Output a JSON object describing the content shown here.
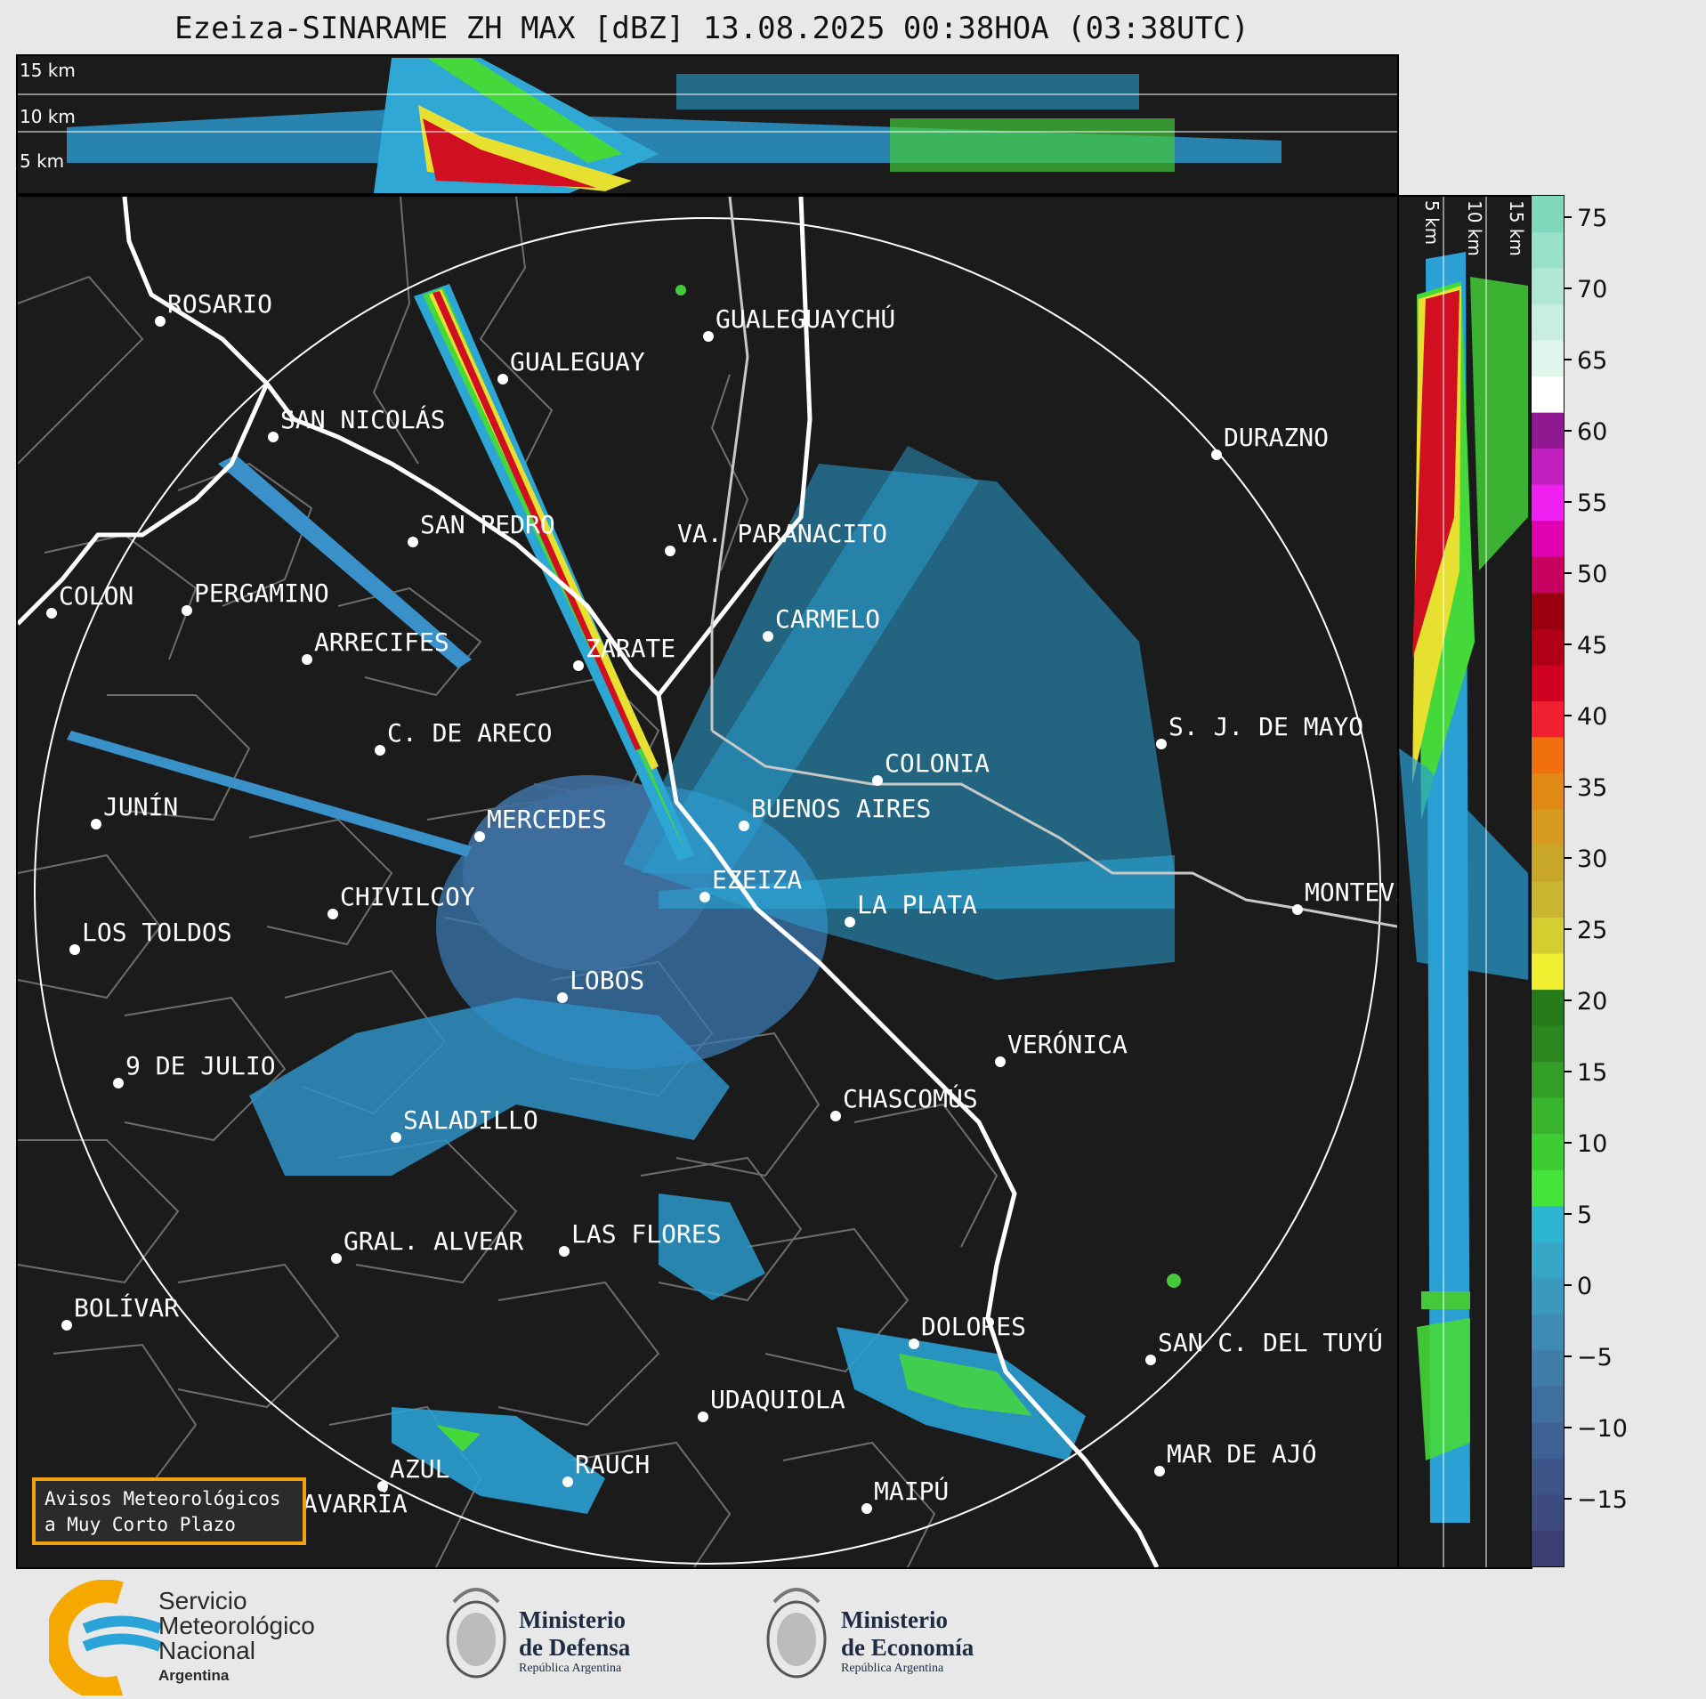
{
  "title": "Ezeiza-SINARAME ZH MAX [dBZ] 13.08.2025 00:38HOA (03:38UTC)",
  "top_panel": {
    "height_labels": [
      "15 km",
      "10 km",
      "5 km"
    ]
  },
  "side_panel": {
    "height_labels": [
      "5 km",
      "10 km",
      "15 km"
    ]
  },
  "colorbar": {
    "unit": "dBZ",
    "ticks": [
      "75",
      "70",
      "65",
      "60",
      "55",
      "50",
      "45",
      "40",
      "35",
      "30",
      "25",
      "20",
      "15",
      "10",
      "5",
      "0",
      "−5",
      "−10",
      "−15"
    ],
    "colors": [
      "#3b3f73",
      "#3d4a7e",
      "#3e558a",
      "#3f6294",
      "#3f6f9e",
      "#3f7ca8",
      "#3f8ab2",
      "#3c98bc",
      "#36a6c6",
      "#2cb4d0",
      "#45e43a",
      "#3ecc33",
      "#38b52d",
      "#329e27",
      "#2c8721",
      "#257a1c",
      "#f0f030",
      "#d4cf30",
      "#c9b530",
      "#c8a628",
      "#d69a20",
      "#e08a15",
      "#f07010",
      "#f02030",
      "#d00020",
      "#b00015",
      "#980010",
      "#c80060",
      "#e000b0",
      "#f020f0",
      "#c020c0",
      "#901890",
      "#ffffff",
      "#e0f5ec",
      "#c8eee0",
      "#b0e8d4",
      "#98e0c8",
      "#80d8bc"
    ]
  },
  "cities": [
    {
      "name": "ROSARIO"
    },
    {
      "name": "GUALEGUAYCHÚ"
    },
    {
      "name": "GUALEGUAY"
    },
    {
      "name": "SAN NICOLÁS"
    },
    {
      "name": "DURAZNO"
    },
    {
      "name": "SAN PEDRO"
    },
    {
      "name": "VA. PARANACITO"
    },
    {
      "name": "COLON"
    },
    {
      "name": "PERGAMINO"
    },
    {
      "name": "CARMELO"
    },
    {
      "name": "ARRECIFES"
    },
    {
      "name": "ZÁRATE"
    },
    {
      "name": "C. DE ARECO"
    },
    {
      "name": "S. J. DE MAYO"
    },
    {
      "name": "COLONIA"
    },
    {
      "name": "JUNÍN"
    },
    {
      "name": "MERCEDES"
    },
    {
      "name": "BUENOS AIRES"
    },
    {
      "name": "EZEIZA"
    },
    {
      "name": "CHIVILCOY"
    },
    {
      "name": "LA PLATA"
    },
    {
      "name": "MONTEVIDEO"
    },
    {
      "name": "LOS TOLDOS"
    },
    {
      "name": "LOBOS"
    },
    {
      "name": "VERÓNICA"
    },
    {
      "name": "9 DE JULIO"
    },
    {
      "name": "CHASCOMÚS"
    },
    {
      "name": "SALADILLO"
    },
    {
      "name": "GRAL. ALVEAR"
    },
    {
      "name": "LAS FLORES"
    },
    {
      "name": "BOLÍVAR"
    },
    {
      "name": "DOLORES"
    },
    {
      "name": "SAN C. DEL TUYÚ"
    },
    {
      "name": "UDAQUIOLA"
    },
    {
      "name": "AZUL"
    },
    {
      "name": "RAUCH"
    },
    {
      "name": "MAR DE AJÓ"
    },
    {
      "name": "OLAVARRÍA"
    },
    {
      "name": "MAIPÚ"
    }
  ],
  "avisos_box": {
    "line1": "Avisos Meteorológicos",
    "line2": "a Muy Corto Plazo"
  },
  "logos": {
    "smn": {
      "line1": "Servicio",
      "line2": "Meteorológico",
      "line3": "Nacional",
      "line4": "Argentina"
    },
    "defensa": {
      "line1": "Ministerio",
      "line2": "de Defensa",
      "line3": "República Argentina"
    },
    "economia": {
      "line1": "Ministerio",
      "line2": "de Economía",
      "line3": "República Argentina"
    }
  }
}
